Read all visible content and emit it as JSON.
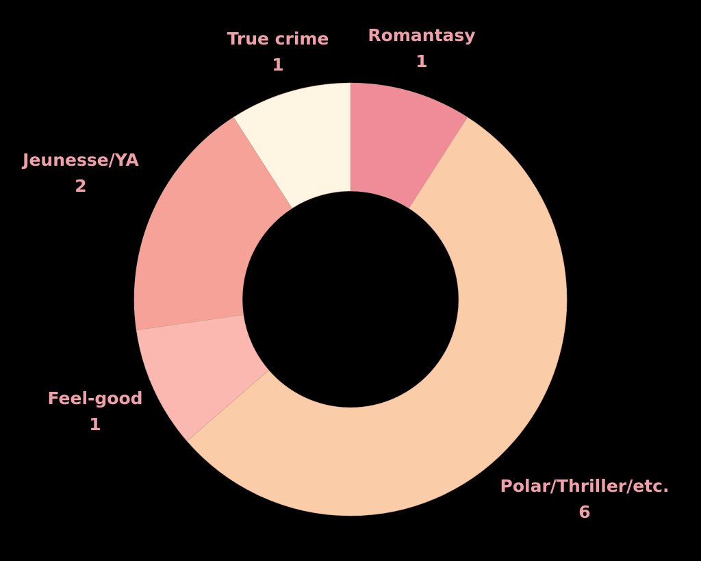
{
  "chart_data": {
    "type": "pie",
    "donut": true,
    "start_position": "top, clockwise",
    "label_color": "#F0A0A8",
    "background": "#000000",
    "slices": [
      {
        "label": "Romantasy",
        "value": 1,
        "value_label": "1",
        "color": "#F08C98"
      },
      {
        "label": "Polar/Thriller/etc.",
        "value": 6,
        "value_label": "6",
        "color": "#FACCA8"
      },
      {
        "label": "Feel-good",
        "value": 1,
        "value_label": "1",
        "color": "#FBB8B0"
      },
      {
        "label": "Jeunesse/YA",
        "value": 2,
        "value_label": "2",
        "color": "#F7A298"
      },
      {
        "label": "True crime",
        "value": 1,
        "value_label": "1",
        "color": "#FFF5E3"
      }
    ]
  }
}
